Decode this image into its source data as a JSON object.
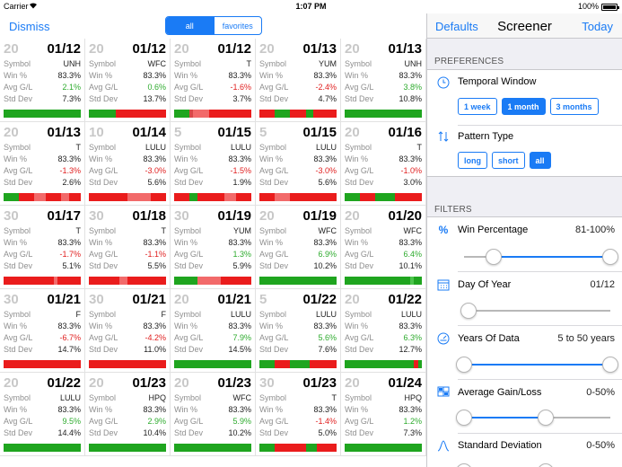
{
  "status_bar": {
    "carrier": "Carrier",
    "time": "1:07 PM",
    "battery": "100%"
  },
  "left_nav": {
    "dismiss_label": "Dismiss",
    "segments": [
      {
        "label": "all",
        "active": true
      },
      {
        "label": "favorites",
        "active": false
      }
    ]
  },
  "labels": {
    "symbol": "Symbol",
    "win": "Win %",
    "avg": "Avg G/L",
    "std": "Std Dev"
  },
  "cells": [
    {
      "years": "20",
      "date": "01/12",
      "symbol": "UNH",
      "win": "83.3%",
      "avg": "2.1%",
      "avg_sign": "pos",
      "std": "7.3%",
      "bar": "gggggggggggggggggggg"
    },
    {
      "years": "20",
      "date": "01/12",
      "symbol": "WFC",
      "win": "83.3%",
      "avg": "0.6%",
      "avg_sign": "pos",
      "std": "13.7%",
      "bar": "gggggggrrrrrrrrrrrrr"
    },
    {
      "years": "20",
      "date": "01/12",
      "symbol": "T",
      "win": "83.3%",
      "avg": "-1.6%",
      "avg_sign": "neg",
      "std": "3.7%",
      "bar": "ggggmpppprrrrrrrrrrr"
    },
    {
      "years": "20",
      "date": "01/13",
      "symbol": "YUM",
      "win": "83.3%",
      "avg": "-2.4%",
      "avg_sign": "neg",
      "std": "4.7%",
      "bar": "rrrrggggrrrrggrrrrrr"
    },
    {
      "years": "20",
      "date": "01/13",
      "symbol": "UNH",
      "win": "83.3%",
      "avg": "3.8%",
      "avg_sign": "pos",
      "std": "10.8%",
      "bar": "gggggggggggggggggggg"
    },
    {
      "years": "20",
      "date": "01/13",
      "symbol": "T",
      "win": "83.3%",
      "avg": "-1.3%",
      "avg_sign": "neg",
      "std": "2.6%",
      "bar": "ggggrrrrppprrrrpprrr"
    },
    {
      "years": "10",
      "date": "01/14",
      "symbol": "LULU",
      "win": "83.3%",
      "avg": "-3.0%",
      "avg_sign": "neg",
      "std": "5.6%",
      "bar": "rrrrrrrrrrpppppprrrr"
    },
    {
      "years": "5",
      "date": "01/15",
      "symbol": "LULU",
      "win": "83.3%",
      "avg": "-1.5%",
      "avg_sign": "neg",
      "std": "1.9%",
      "bar": "rrrrggrrrrrrrppprrrr"
    },
    {
      "years": "5",
      "date": "01/15",
      "symbol": "LULU",
      "win": "83.3%",
      "avg": "-3.0%",
      "avg_sign": "neg",
      "std": "5.6%",
      "bar": "rrrrpppprrrrrrrrrrrr"
    },
    {
      "years": "20",
      "date": "01/16",
      "symbol": "T",
      "win": "83.3%",
      "avg": "-1.0%",
      "avg_sign": "neg",
      "std": "3.0%",
      "bar": "ggggrrrrgggggrrrrrrr"
    },
    {
      "years": "30",
      "date": "01/17",
      "symbol": "T",
      "win": "83.3%",
      "avg": "-1.7%",
      "avg_sign": "neg",
      "std": "5.1%",
      "bar": "rrrrrrrrrrrrrprrrrrr"
    },
    {
      "years": "30",
      "date": "01/18",
      "symbol": "T",
      "win": "83.3%",
      "avg": "-1.1%",
      "avg_sign": "neg",
      "std": "5.5%",
      "bar": "rrrrrrrrpprrrrrrrrrr"
    },
    {
      "years": "30",
      "date": "01/19",
      "symbol": "YUM",
      "win": "83.3%",
      "avg": "1.3%",
      "avg_sign": "pos",
      "std": "5.9%",
      "bar": "ggggggpppppprrrrrrrr"
    },
    {
      "years": "20",
      "date": "01/19",
      "symbol": "WFC",
      "win": "83.3%",
      "avg": "6.9%",
      "avg_sign": "pos",
      "std": "10.2%",
      "bar": "gggggggggggggggggggg"
    },
    {
      "years": "20",
      "date": "01/20",
      "symbol": "WFC",
      "win": "83.3%",
      "avg": "6.4%",
      "avg_sign": "pos",
      "std": "10.1%",
      "bar": "ggggggggggggggggghgg"
    },
    {
      "years": "30",
      "date": "01/21",
      "symbol": "F",
      "win": "83.3%",
      "avg": "-6.7%",
      "avg_sign": "neg",
      "std": "14.7%",
      "bar": "rrrrrrrrrrrrrrrrrrrr"
    },
    {
      "years": "30",
      "date": "01/21",
      "symbol": "F",
      "win": "83.3%",
      "avg": "-4.2%",
      "avg_sign": "neg",
      "std": "11.0%",
      "bar": "rrrrrrrrrrrrrrrrrrrr"
    },
    {
      "years": "20",
      "date": "01/21",
      "symbol": "LULU",
      "win": "83.3%",
      "avg": "7.9%",
      "avg_sign": "pos",
      "std": "14.5%",
      "bar": "gggggggggggggggggggg"
    },
    {
      "years": "5",
      "date": "01/22",
      "symbol": "LULU",
      "win": "83.3%",
      "avg": "5.6%",
      "avg_sign": "pos",
      "std": "7.6%",
      "bar": "ggggrrrrgggggrrrrrrr"
    },
    {
      "years": "20",
      "date": "01/22",
      "symbol": "LULU",
      "win": "83.3%",
      "avg": "6.3%",
      "avg_sign": "pos",
      "std": "12.7%",
      "bar": "ggggggggggggggggggrg"
    },
    {
      "years": "20",
      "date": "01/22",
      "symbol": "LULU",
      "win": "83.3%",
      "avg": "9.5%",
      "avg_sign": "pos",
      "std": "14.4%",
      "bar": "gggggggggggggggggggg"
    },
    {
      "years": "20",
      "date": "01/23",
      "symbol": "HPQ",
      "win": "83.3%",
      "avg": "2.9%",
      "avg_sign": "pos",
      "std": "10.4%",
      "bar": "gggggggggggggggggggg"
    },
    {
      "years": "20",
      "date": "01/23",
      "symbol": "WFC",
      "win": "83.3%",
      "avg": "5.9%",
      "avg_sign": "pos",
      "std": "10.2%",
      "bar": "gggggggggggggggggggg"
    },
    {
      "years": "30",
      "date": "01/23",
      "symbol": "T",
      "win": "83.3%",
      "avg": "-1.4%",
      "avg_sign": "neg",
      "std": "5.0%",
      "bar": "ggggrrrrrrrrgggrrrrr"
    },
    {
      "years": "20",
      "date": "01/24",
      "symbol": "HPQ",
      "win": "83.3%",
      "avg": "1.2%",
      "avg_sign": "pos",
      "std": "7.3%",
      "bar": "gggggggggggggggggggg"
    }
  ],
  "bar_colors": {
    "g": "#1fa51f",
    "h": "#4cc44c",
    "r": "#ea1c1c",
    "p": "#f26a6a",
    "m": "#d84848"
  },
  "screener": {
    "defaults_label": "Defaults",
    "title": "Screener",
    "today_label": "Today",
    "preferences_header": "PREFERENCES",
    "temporal_window": {
      "icon": "clock-icon",
      "label": "Temporal Window",
      "options": [
        {
          "label": "1 week",
          "active": false
        },
        {
          "label": "1 month",
          "active": true
        },
        {
          "label": "3 months",
          "active": false
        }
      ]
    },
    "pattern_type": {
      "icon": "arrows-up-down-icon",
      "label": "Pattern Type",
      "options": [
        {
          "label": "long",
          "active": false
        },
        {
          "label": "short",
          "active": false
        },
        {
          "label": "all",
          "active": true
        }
      ]
    },
    "filters_header": "FILTERS",
    "filters": [
      {
        "icon": "percent-icon",
        "label": "Win Percentage",
        "value": "81-100%",
        "range": [
          0.2,
          1.0
        ]
      },
      {
        "icon": "calendar-icon",
        "label": "Day Of Year",
        "value": "01/12",
        "range": [
          0.03
        ]
      },
      {
        "icon": "gauge-icon",
        "label": "Years Of Data",
        "value": "5 to 50 years",
        "range": [
          0.0,
          1.0
        ]
      },
      {
        "icon": "grid-icon",
        "label": "Average Gain/Loss",
        "value": "0-50%",
        "range": [
          0.0,
          0.56
        ]
      },
      {
        "icon": "bell-curve-icon",
        "label": "Standard Deviation",
        "value": "0-50%",
        "range": [
          0.0,
          0.56
        ]
      }
    ]
  }
}
